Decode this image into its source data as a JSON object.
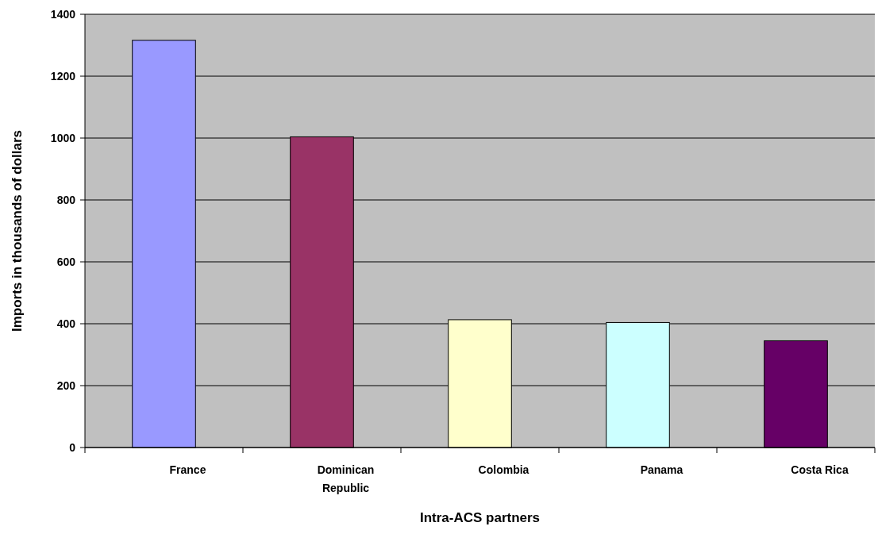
{
  "chart_data": {
    "type": "bar",
    "xlabel": "Intra-ACS partners",
    "ylabel": "Imports in thousands of dollars",
    "categories": [
      "France",
      "Dominican Republic",
      "Colombia",
      "Panama",
      "Costa Rica"
    ],
    "values": [
      1316,
      1004,
      413,
      404,
      345
    ],
    "colors": [
      "#9999ff",
      "#993366",
      "#ffffcc",
      "#ccffff",
      "#660066"
    ],
    "ylim": [
      0,
      1400
    ],
    "yticks": [
      0,
      200,
      400,
      600,
      800,
      1000,
      1200,
      1400
    ],
    "grid": "y"
  }
}
